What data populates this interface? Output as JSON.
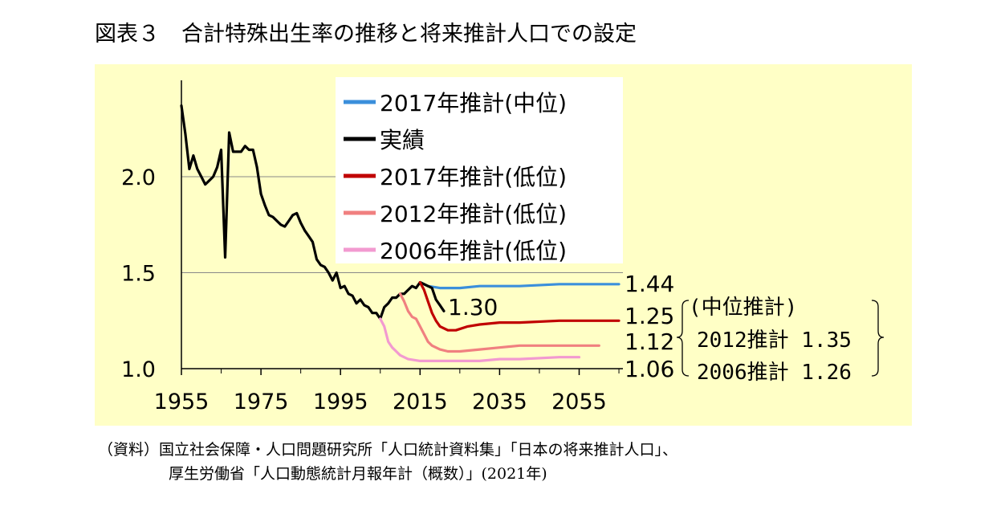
{
  "title": "図表３　合計特殊出生率の推移と将来推計人口での設定",
  "colors": {
    "panel_bg": "#ffffc6",
    "actual": "#000000",
    "proj2017_mid": "#3b8fdb",
    "proj2017_low": "#c00000",
    "proj2012_low": "#f08080",
    "proj2006_low": "#f29ad0"
  },
  "chart_data": {
    "type": "line",
    "xlim": [
      1955,
      2066
    ],
    "ylim": [
      1.0,
      2.45
    ],
    "x_ticks": [
      "1955",
      "1975",
      "1995",
      "2015",
      "2035",
      "2055"
    ],
    "y_ticks": [
      "1.0",
      "1.5",
      "2.0"
    ],
    "grid": "horizontal at y ticks",
    "legend": "top, inside plot",
    "series": [
      {
        "name": "2017年推計(中位)",
        "color": "#3b8fdb",
        "points": [
          [
            2015,
            1.45
          ],
          [
            2017,
            1.43
          ],
          [
            2020,
            1.42
          ],
          [
            2025,
            1.42
          ],
          [
            2030,
            1.43
          ],
          [
            2040,
            1.43
          ],
          [
            2050,
            1.44
          ],
          [
            2060,
            1.44
          ],
          [
            2065,
            1.44
          ]
        ]
      },
      {
        "name": "実績",
        "color": "#000000",
        "points": [
          [
            1955,
            2.37
          ],
          [
            1956,
            2.22
          ],
          [
            1957,
            2.04
          ],
          [
            1958,
            2.11
          ],
          [
            1959,
            2.04
          ],
          [
            1960,
            2.0
          ],
          [
            1961,
            1.96
          ],
          [
            1962,
            1.98
          ],
          [
            1963,
            2.0
          ],
          [
            1964,
            2.05
          ],
          [
            1965,
            2.14
          ],
          [
            1966,
            1.58
          ],
          [
            1967,
            2.23
          ],
          [
            1968,
            2.13
          ],
          [
            1969,
            2.13
          ],
          [
            1970,
            2.13
          ],
          [
            1971,
            2.16
          ],
          [
            1972,
            2.14
          ],
          [
            1973,
            2.14
          ],
          [
            1974,
            2.05
          ],
          [
            1975,
            1.91
          ],
          [
            1976,
            1.85
          ],
          [
            1977,
            1.8
          ],
          [
            1978,
            1.79
          ],
          [
            1979,
            1.77
          ],
          [
            1980,
            1.75
          ],
          [
            1981,
            1.74
          ],
          [
            1982,
            1.77
          ],
          [
            1983,
            1.8
          ],
          [
            1984,
            1.81
          ],
          [
            1985,
            1.76
          ],
          [
            1986,
            1.72
          ],
          [
            1987,
            1.69
          ],
          [
            1988,
            1.66
          ],
          [
            1989,
            1.57
          ],
          [
            1990,
            1.54
          ],
          [
            1991,
            1.53
          ],
          [
            1992,
            1.5
          ],
          [
            1993,
            1.46
          ],
          [
            1994,
            1.5
          ],
          [
            1995,
            1.42
          ],
          [
            1996,
            1.43
          ],
          [
            1997,
            1.39
          ],
          [
            1998,
            1.38
          ],
          [
            1999,
            1.34
          ],
          [
            2000,
            1.36
          ],
          [
            2001,
            1.33
          ],
          [
            2002,
            1.32
          ],
          [
            2003,
            1.29
          ],
          [
            2004,
            1.29
          ],
          [
            2005,
            1.26
          ],
          [
            2006,
            1.32
          ],
          [
            2007,
            1.34
          ],
          [
            2008,
            1.37
          ],
          [
            2009,
            1.37
          ],
          [
            2010,
            1.39
          ],
          [
            2011,
            1.39
          ],
          [
            2012,
            1.41
          ],
          [
            2013,
            1.43
          ],
          [
            2014,
            1.42
          ],
          [
            2015,
            1.45
          ],
          [
            2016,
            1.44
          ],
          [
            2017,
            1.43
          ],
          [
            2018,
            1.42
          ],
          [
            2019,
            1.36
          ],
          [
            2020,
            1.33
          ],
          [
            2021,
            1.3
          ]
        ]
      },
      {
        "name": "2017年推計(低位)",
        "color": "#c00000",
        "points": [
          [
            2015,
            1.45
          ],
          [
            2016,
            1.41
          ],
          [
            2017,
            1.35
          ],
          [
            2018,
            1.29
          ],
          [
            2019,
            1.25
          ],
          [
            2020,
            1.22
          ],
          [
            2022,
            1.2
          ],
          [
            2024,
            1.2
          ],
          [
            2027,
            1.22
          ],
          [
            2030,
            1.23
          ],
          [
            2035,
            1.24
          ],
          [
            2040,
            1.24
          ],
          [
            2050,
            1.25
          ],
          [
            2060,
            1.25
          ],
          [
            2065,
            1.25
          ]
        ]
      },
      {
        "name": "2012年推計(低位)",
        "color": "#f08080",
        "points": [
          [
            2010,
            1.39
          ],
          [
            2011,
            1.35
          ],
          [
            2012,
            1.3
          ],
          [
            2013,
            1.27
          ],
          [
            2014,
            1.26
          ],
          [
            2015,
            1.22
          ],
          [
            2016,
            1.18
          ],
          [
            2017,
            1.14
          ],
          [
            2018,
            1.12
          ],
          [
            2020,
            1.1
          ],
          [
            2022,
            1.09
          ],
          [
            2025,
            1.09
          ],
          [
            2030,
            1.1
          ],
          [
            2035,
            1.11
          ],
          [
            2040,
            1.12
          ],
          [
            2050,
            1.12
          ],
          [
            2060,
            1.12
          ]
        ]
      },
      {
        "name": "2006年推計(低位)",
        "color": "#f29ad0",
        "points": [
          [
            2005,
            1.26
          ],
          [
            2006,
            1.22
          ],
          [
            2007,
            1.14
          ],
          [
            2008,
            1.11
          ],
          [
            2009,
            1.09
          ],
          [
            2010,
            1.07
          ],
          [
            2012,
            1.05
          ],
          [
            2015,
            1.04
          ],
          [
            2020,
            1.04
          ],
          [
            2025,
            1.04
          ],
          [
            2030,
            1.04
          ],
          [
            2035,
            1.05
          ],
          [
            2040,
            1.05
          ],
          [
            2050,
            1.06
          ],
          [
            2055,
            1.06
          ]
        ]
      }
    ],
    "end_labels": [
      "1.44",
      "1.25",
      "1.12",
      "1.06"
    ],
    "actual_end_label": "1.30",
    "annotation": {
      "lines": [
        "(中位推計)",
        "2012推計 1.35",
        "2006推計 1.26"
      ]
    }
  },
  "source": {
    "line1": "（資料）国立社会保障・人口問題研究所「人口統計資料集」「日本の将来推計人口」、",
    "line2": "厚生労働省「人口動態統計月報年計（概数）」(2021年)"
  }
}
